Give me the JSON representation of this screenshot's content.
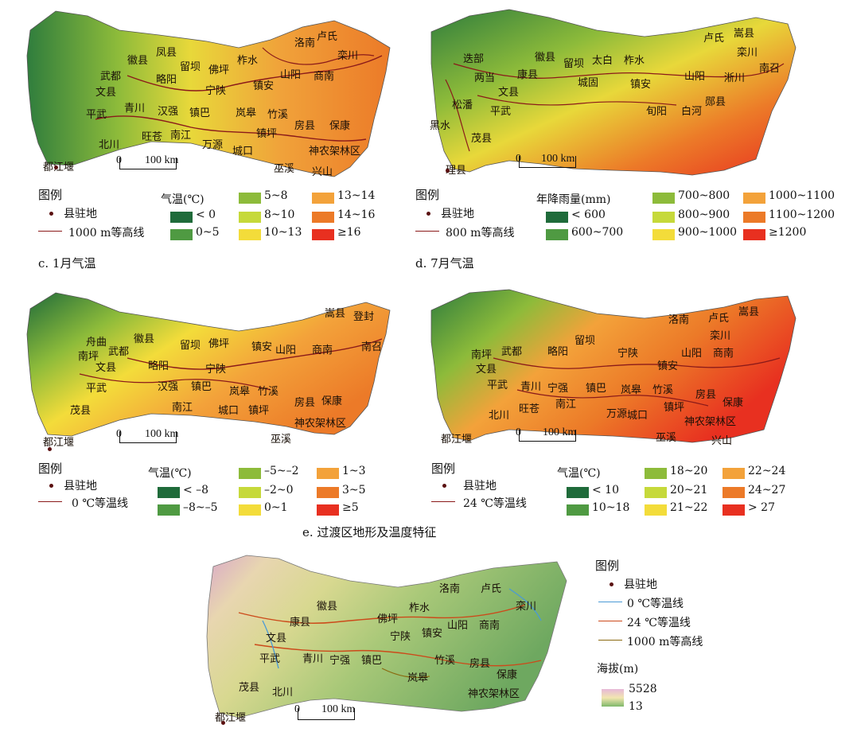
{
  "panels": {
    "b": {
      "labels": [
        "洛南",
        "卢氏",
        "徽县",
        "凤县",
        "柞水",
        "栾川",
        "武都",
        "留坝",
        "佛坪",
        "山阳",
        "商南",
        "略阳",
        "镇安",
        "文县",
        "宁陕",
        "青川",
        "汉强",
        "镇巴",
        "岚皋",
        "竹溪",
        "平武",
        "旺苍",
        "南江",
        "房县",
        "保康",
        "北川",
        "万源",
        "城口",
        "镇坪",
        "神农架林区",
        "都江堰",
        "巫溪",
        "兴山"
      ],
      "scale": {
        "zero": "0",
        "km": "100 km"
      },
      "legend": {
        "title": "图例",
        "point": "县驻地",
        "line": "1000 m等高线",
        "classes_title": "气温(℃)",
        "classes": [
          "< 0",
          "0~5",
          "5~8",
          "8~10",
          "10~13",
          "13~14",
          "14~16",
          "≥16"
        ],
        "colors": [
          "#1f6b3a",
          "#4f9a42",
          "#8dbb3a",
          "#c6d93a",
          "#f3dc3a",
          "#f3a23a",
          "#ec7a28",
          "#e83020"
        ]
      }
    },
    "d": {
      "labels": [
        "卢氏",
        "嵩县",
        "迭部",
        "徽县",
        "留坝",
        "太白",
        "柞水",
        "栾川",
        "南召",
        "两当",
        "康县",
        "城固",
        "镇安",
        "山阳",
        "淅川",
        "文县",
        "郧县",
        "松潘",
        "平武",
        "旬阳",
        "白河",
        "黑水",
        "茂县",
        "理县"
      ],
      "scale": {
        "zero": "0",
        "km": "100 km"
      },
      "legend": {
        "title": "图例",
        "point": "县驻地",
        "line": "800 m等高线",
        "classes_title": "年降雨量(mm)",
        "classes": [
          "< 600",
          "600~700",
          "700~800",
          "800~900",
          "900~1000",
          "1000~1100",
          "1100~1200",
          "≥1200"
        ],
        "colors": [
          "#1f6b3a",
          "#4f9a42",
          "#8dbb3a",
          "#c6d93a",
          "#f3dc3a",
          "#f3a23a",
          "#ec7a28",
          "#e83020"
        ]
      }
    },
    "c_caption": "c. 1月气温",
    "d_caption": "d. 7月气温",
    "c": {
      "labels": [
        "嵩县",
        "登封",
        "舟曲",
        "徽县",
        "南召",
        "南坪",
        "武都",
        "留坝",
        "佛坪",
        "镇安",
        "山阳",
        "商南",
        "文县",
        "略阳",
        "宁陕",
        "平武",
        "汉强",
        "镇巴",
        "岚皋",
        "竹溪",
        "茂县",
        "南江",
        "房县",
        "保康",
        "城口",
        "镇坪",
        "神农架林区",
        "都江堰",
        "巫溪"
      ],
      "scale": {
        "zero": "0",
        "km": "100 km"
      },
      "legend": {
        "title": "图例",
        "point": "县驻地",
        "line": "0 ℃等温线",
        "classes_title": "气温(℃)",
        "classes": [
          "< –8",
          "–8~–5",
          "–5~–2",
          "–2~0",
          "0~1",
          "1~3",
          "3~5",
          "≥5"
        ],
        "colors": [
          "#1f6b3a",
          "#4f9a42",
          "#8dbb3a",
          "#c6d93a",
          "#f3dc3a",
          "#f3a23a",
          "#ec7a28",
          "#e83020"
        ]
      }
    },
    "e7": {
      "labels": [
        "洛南",
        "卢氏",
        "嵩县",
        "南坪",
        "武都",
        "留坝",
        "栾川",
        "略阳",
        "宁陕",
        "山阳",
        "商南",
        "文县",
        "镇安",
        "平武",
        "青川",
        "宁强",
        "镇巴",
        "岚皋",
        "竹溪",
        "房县",
        "保康",
        "旺苍",
        "南江",
        "镇坪",
        "北川",
        "万源",
        "城口",
        "神农架林区",
        "都江堰",
        "巫溪",
        "兴山"
      ],
      "scale": {
        "zero": "0",
        "km": "100 km"
      },
      "legend": {
        "title": "图例",
        "point": "县驻地",
        "line": "24 ℃等温线",
        "classes_title": "气温(℃)",
        "classes": [
          "< 10",
          "10~18",
          "18~20",
          "20~21",
          "21~22",
          "22~24",
          "24~27",
          "> 27"
        ],
        "colors": [
          "#1f6b3a",
          "#4f9a42",
          "#8dbb3a",
          "#c6d93a",
          "#f3dc3a",
          "#f3a23a",
          "#ec7a28",
          "#e83020"
        ]
      }
    },
    "e_caption": "e. 过渡区地形及温度特征",
    "e": {
      "labels": [
        "洛南",
        "卢氏",
        "徽县",
        "栾川",
        "柞水",
        "佛坪",
        "康县",
        "山阳",
        "商南",
        "镇安",
        "宁陕",
        "文县",
        "平武",
        "青川",
        "宁强",
        "镇巴",
        "竹溪",
        "房县",
        "岚皋",
        "保康",
        "茂县",
        "北川",
        "神农架林区",
        "都江堰"
      ],
      "scale": {
        "zero": "0",
        "km": "100 km"
      },
      "legend": {
        "title": "图例",
        "point": "县驻地",
        "line1": "0 ℃等温线",
        "line2": "24 ℃等温线",
        "line3": "1000 m等高线",
        "elev_title": "海拔(m)",
        "elev_max": "5528",
        "elev_min": "13"
      }
    }
  }
}
